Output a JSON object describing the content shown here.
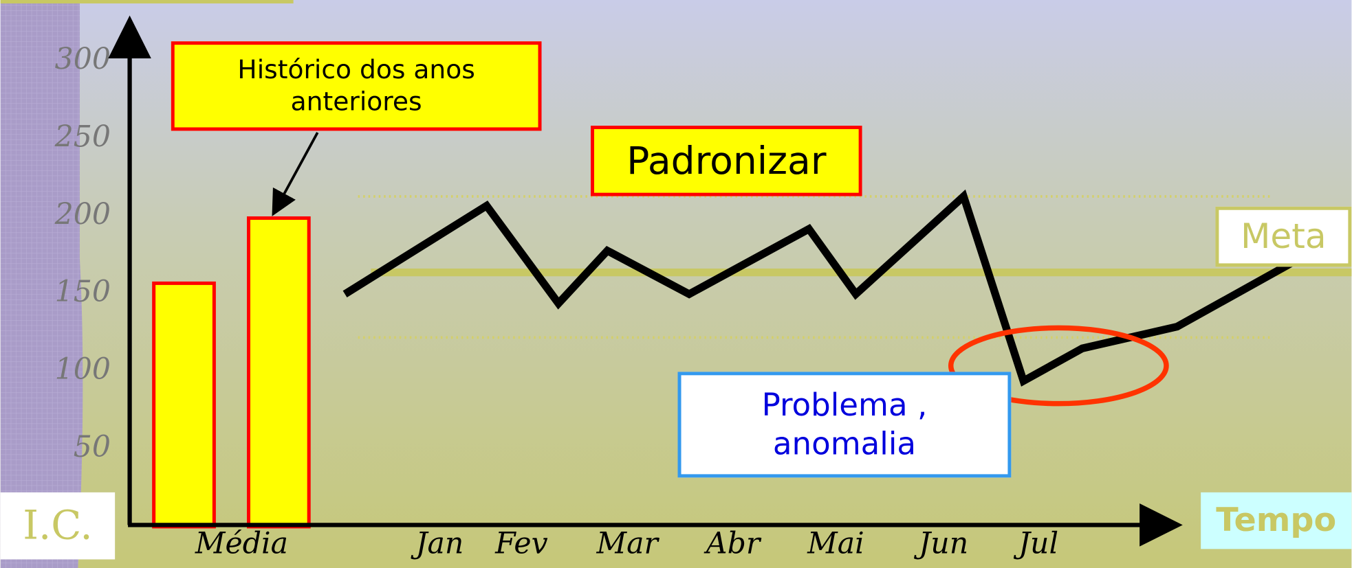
{
  "chart_data": [
    {
      "type": "bar",
      "categories": [
        "Média"
      ],
      "series": [
        {
          "color": "#ffff00",
          "values": [
            157
          ]
        },
        {
          "color": "#ffff00",
          "values": [
            199
          ]
        }
      ],
      "edgecolor": "#ff0000",
      "ylim": [
        0,
        333
      ],
      "yticks": [
        50,
        100,
        150,
        200,
        250,
        300
      ],
      "ylabel": "I.C.",
      "annotations": [
        "Histórico dos anos anteriores"
      ]
    },
    {
      "type": "line",
      "x": [
        0.05,
        1.47,
        2.19,
        2.68,
        3.5,
        4.7,
        5.17,
        6.25,
        6.85,
        7.44,
        8.39,
        9.59
      ],
      "values": [
        150,
        207,
        144,
        178,
        150,
        192,
        150,
        213,
        94,
        115,
        129,
        172
      ],
      "color": "#000000",
      "xlim": [
        0,
        10
      ],
      "xticks": [
        {
          "value": 1,
          "label": "Jan"
        },
        {
          "value": 1.82,
          "label": "Fev"
        },
        {
          "value": 2.88,
          "label": "Mar"
        },
        {
          "value": 3.94,
          "label": "Abr"
        },
        {
          "value": 4.97,
          "label": "Mai"
        },
        {
          "value": 6.05,
          "label": "Jun"
        },
        {
          "value": 7,
          "label": "Jul"
        }
      ],
      "ylim": [
        0,
        333
      ],
      "xlabel": "Tempo",
      "target": {
        "label": "Meta",
        "value": 164
      },
      "limits": [
        213,
        122
      ],
      "annotations": [
        "Padronizar",
        "Problema , anomalia"
      ]
    }
  ]
}
